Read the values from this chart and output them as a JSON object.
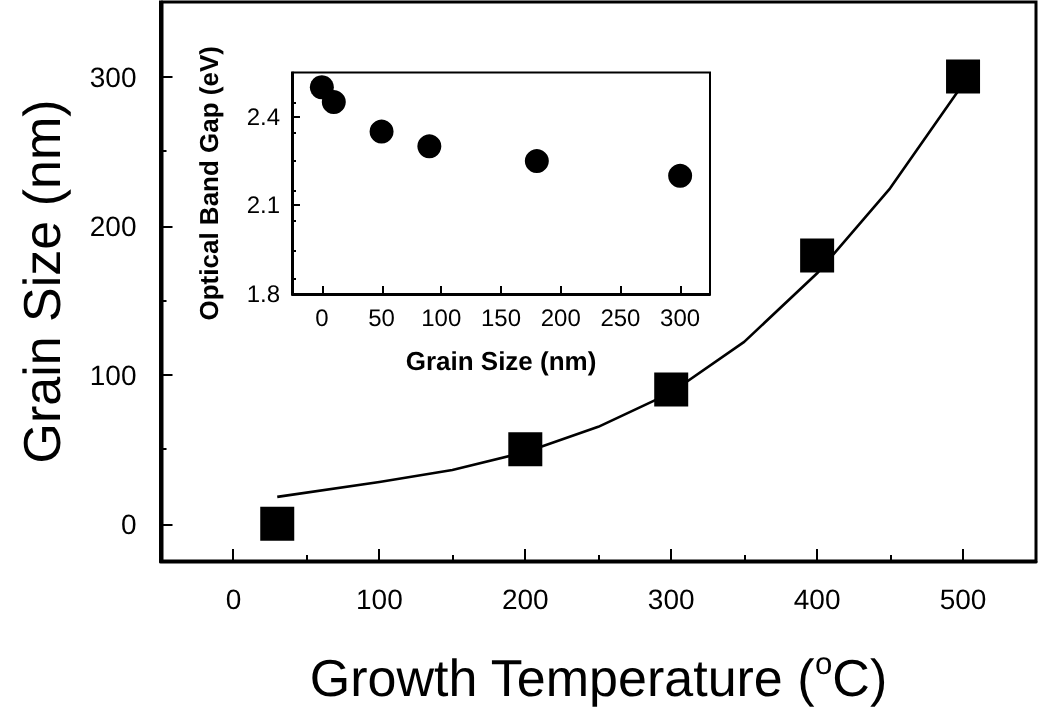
{
  "chart_data": [
    {
      "type": "scatter",
      "xlabel": "Growth Temperature ($^{o}$C)",
      "ylabel": "Grain Size (nm)",
      "xlim": [
        -50,
        550
      ],
      "ylim": [
        -25,
        350
      ],
      "xticks": [
        0,
        100,
        200,
        300,
        400,
        500
      ],
      "yticks": [
        0,
        100,
        200,
        300
      ],
      "series": [
        {
          "marker": "square",
          "color": "#000000",
          "x": [
            30,
            200,
            300,
            400,
            500
          ],
          "values": [
            0,
            50,
            90,
            180,
            300
          ]
        },
        {
          "type": "line",
          "marker": "none",
          "line_style": "solid",
          "color": "#000000",
          "x": [
            30,
            100,
            150,
            200,
            250,
            300,
            350,
            400,
            450,
            500
          ],
          "values": [
            18,
            28,
            36,
            48,
            65,
            88,
            122,
            168,
            225,
            295
          ]
        }
      ]
    },
    {
      "type": "scatter",
      "xlabel": "Grain Size (nm)",
      "ylabel": "Optical Band Gap (eV)",
      "xlim": [
        -25,
        325
      ],
      "ylim": [
        1.8,
        2.55
      ],
      "xticks": [
        0,
        50,
        100,
        150,
        200,
        250,
        300
      ],
      "yticks": [
        1.8,
        2.1,
        2.4
      ],
      "marker": "circle",
      "series": [
        {
          "color": "#000000",
          "x": [
            0,
            10,
            50,
            90,
            180,
            300
          ],
          "values": [
            2.5,
            2.45,
            2.35,
            2.3,
            2.25,
            2.2
          ]
        }
      ]
    }
  ]
}
